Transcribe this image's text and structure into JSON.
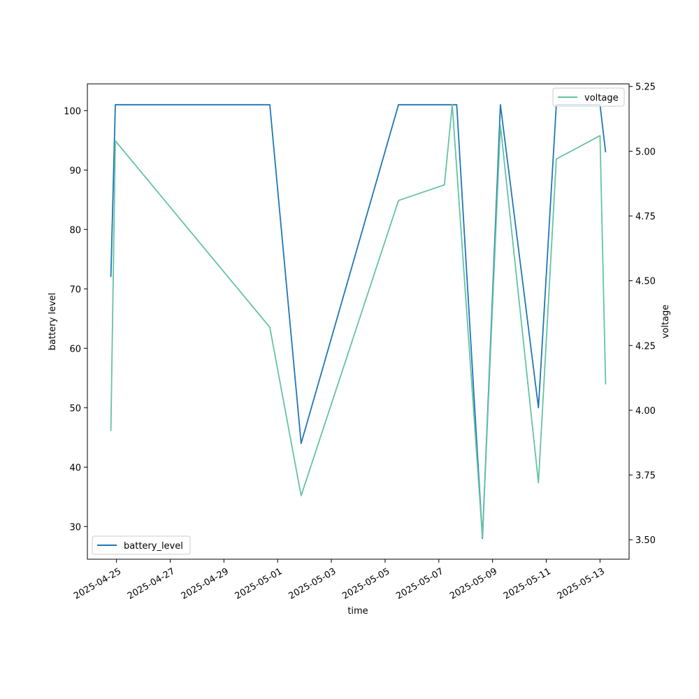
{
  "chart_data": {
    "type": "line",
    "xlabel": "time",
    "ylabel_left": "battery level",
    "ylabel_right": "voltage",
    "xlim": [
      "2025-04-23T22:00",
      "2025-05-14T02:00"
    ],
    "ylim_left": [
      24.5,
      104.5
    ],
    "ylim_right": [
      3.425,
      5.26
    ],
    "x_ticks": [
      "2025-04-25",
      "2025-04-27",
      "2025-04-29",
      "2025-05-01",
      "2025-05-03",
      "2025-05-05",
      "2025-05-07",
      "2025-05-09",
      "2025-05-11",
      "2025-05-13"
    ],
    "y_ticks_left": [
      "30",
      "40",
      "50",
      "60",
      "70",
      "80",
      "90",
      "100"
    ],
    "y_ticks_right": [
      "3.50",
      "3.75",
      "4.00",
      "4.25",
      "4.50",
      "4.75",
      "5.00",
      "5.25"
    ],
    "grid": false,
    "series": [
      {
        "name": "battery_level",
        "axis": "left",
        "color": "#1f77b4",
        "legend": "bottom-left",
        "x": [
          "2025-04-24T19:00",
          "2025-04-24T23:00",
          "2025-04-30T17:00",
          "2025-05-01T21:00",
          "2025-05-05T12:00",
          "2025-05-07T16:00",
          "2025-05-08T15:00",
          "2025-05-09T07:00",
          "2025-05-10T17:00",
          "2025-05-11T09:00",
          "2025-05-13T00:00",
          "2025-05-13T05:00"
        ],
        "values": [
          72,
          101,
          101,
          44,
          101,
          101,
          28,
          101,
          50,
          101,
          101,
          93
        ]
      },
      {
        "name": "voltage",
        "axis": "right",
        "color": "#66c2a5",
        "legend": "top-right",
        "x": [
          "2025-04-24T19:00",
          "2025-04-24T23:00",
          "2025-04-30T17:00",
          "2025-05-01T21:00",
          "2025-05-05T12:00",
          "2025-05-07T05:00",
          "2025-05-07T12:00",
          "2025-05-08T15:00",
          "2025-05-09T07:00",
          "2025-05-10T17:00",
          "2025-05-11T09:00",
          "2025-05-13T00:00",
          "2025-05-13T05:00"
        ],
        "values": [
          3.92,
          5.04,
          4.32,
          3.67,
          4.81,
          4.87,
          5.18,
          3.51,
          5.1,
          3.72,
          4.97,
          5.06,
          4.1
        ]
      }
    ]
  }
}
